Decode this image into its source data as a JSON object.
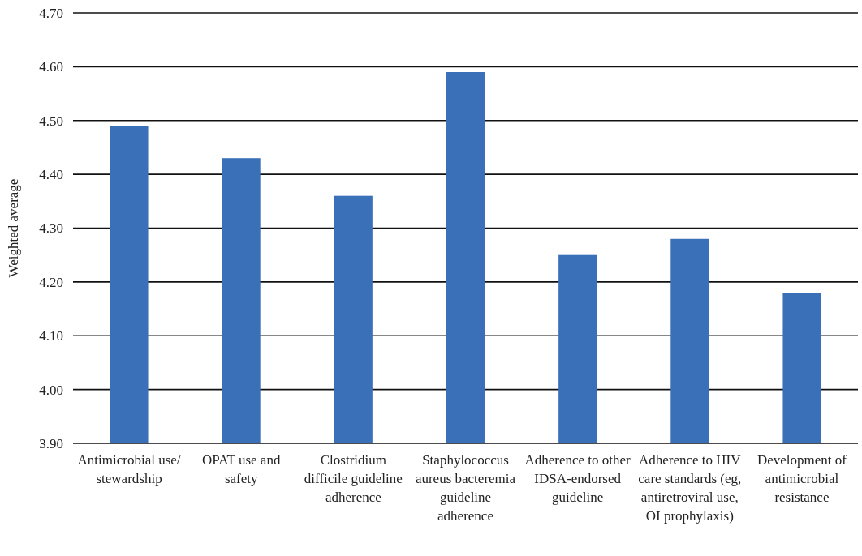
{
  "chart_data": {
    "type": "bar",
    "ylabel": "Weighted average",
    "categories": [
      "Antimicrobial use/stewardship",
      "OPAT use and safety",
      "Clostridium difficile guideline adherence",
      "Staphylococcus aureus bacteremia guideline adherence",
      "Adherence to other IDSA-endorsed guideline",
      "Adherence to HIV care standards (eg, antiretroviral use, OI prophylaxis)",
      "Development of antimicrobial resistance"
    ],
    "values": [
      4.49,
      4.43,
      4.36,
      4.59,
      4.25,
      4.28,
      4.18
    ],
    "color": "#3a70b8",
    "ylim": [
      3.9,
      4.7
    ],
    "yticks": [
      {
        "value": 3.9,
        "label": "3.90"
      },
      {
        "value": 4.0,
        "label": "4.00"
      },
      {
        "value": 4.1,
        "label": "4.10"
      },
      {
        "value": 4.2,
        "label": "4.20"
      },
      {
        "value": 4.3,
        "label": "4.30"
      },
      {
        "value": 4.4,
        "label": "4.40"
      },
      {
        "value": 4.5,
        "label": "4.50"
      },
      {
        "value": 4.6,
        "label": "4.60"
      },
      {
        "value": 4.7,
        "label": "4.70"
      }
    ],
    "grid": "y"
  }
}
